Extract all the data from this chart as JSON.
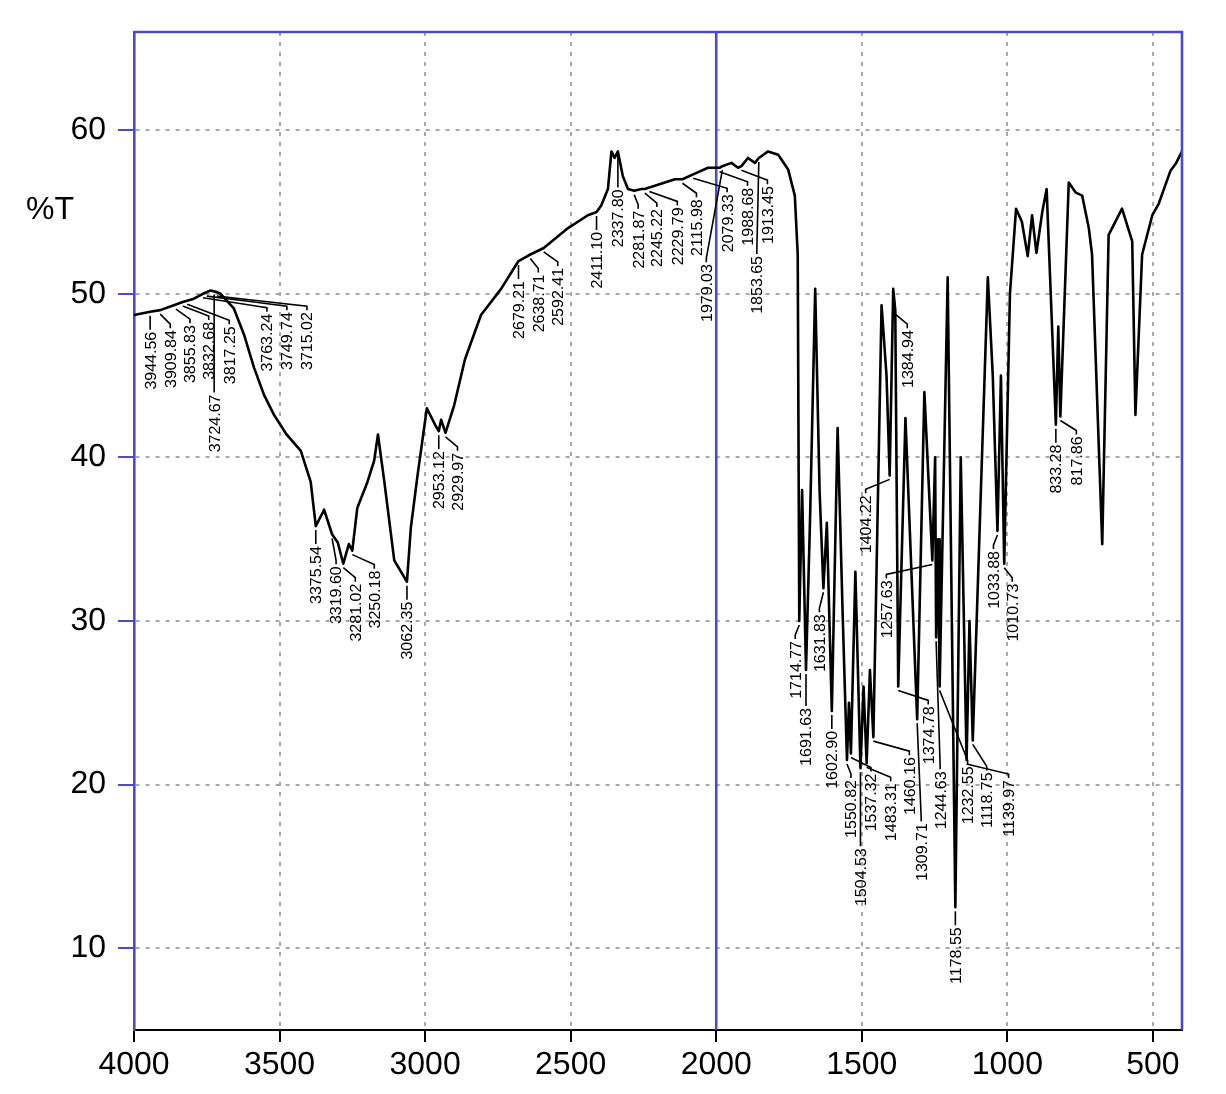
{
  "chart_data": {
    "type": "line",
    "ylabel": "%T",
    "color": "#000000",
    "marker": "none",
    "grid": true,
    "xlim": [
      4000,
      400
    ],
    "ylim": [
      5,
      66
    ],
    "xticks": [
      4000,
      3500,
      3000,
      2500,
      2000,
      1500,
      1000,
      500
    ],
    "yticks": [
      10,
      20,
      30,
      40,
      50,
      60
    ],
    "ref_lines": [
      {
        "axis": "x",
        "value": 2000,
        "color": "#4b4bc8"
      }
    ],
    "x": [
      4000,
      3944.56,
      3909.84,
      3863,
      3832.68,
      3794,
      3763.24,
      3737,
      3715.02,
      3703,
      3657,
      3622,
      3588,
      3553,
      3519,
      3476,
      3427,
      3393,
      3375.54,
      3347,
      3319.6,
      3300,
      3281.02,
      3262,
      3250.18,
      3233,
      3198,
      3175,
      3162,
      3140,
      3106,
      3062.35,
      3049,
      3026,
      2994,
      2966,
      2953.12,
      2945,
      2929.97,
      2900,
      2863,
      2808,
      2739,
      2679.21,
      2638.71,
      2592.41,
      2579,
      2510,
      2441,
      2411.1,
      2395,
      2372,
      2360,
      2349,
      2337.8,
      2321,
      2303,
      2281.87,
      2257,
      2245.22,
      2229.79,
      2211,
      2142,
      2115.98,
      2079.33,
      2028,
      1988.68,
      1979.03,
      1948,
      1925,
      1913.45,
      1891,
      1867,
      1853.65,
      1822,
      1787,
      1753,
      1730,
      1720,
      1714.77,
      1705,
      1691.63,
      1678,
      1660,
      1645,
      1631.83,
      1620,
      1602.9,
      1583,
      1565,
      1550.82,
      1544,
      1537.32,
      1522,
      1504.53,
      1494,
      1483.31,
      1472,
      1460.16,
      1432,
      1415,
      1404.22,
      1392,
      1384.94,
      1374.78,
      1350,
      1309.71,
      1285,
      1257.63,
      1248,
      1244.63,
      1238,
      1232.55,
      1205,
      1178.55,
      1160,
      1139.97,
      1130,
      1118.75,
      1067,
      1050,
      1033.88,
      1022,
      1010.73,
      991,
      970,
      950,
      930,
      915,
      900,
      880,
      865,
      833.28,
      825,
      817.86,
      789,
      766,
      743,
      720,
      709,
      674,
      652,
      606,
      571,
      560,
      537,
      502,
      480,
      460,
      440,
      420,
      400
    ],
    "values": [
      48.7,
      48.9,
      49.0,
      49.3,
      49.5,
      49.7,
      50.0,
      50.2,
      50.1,
      50.0,
      49.1,
      47.5,
      45.5,
      43.8,
      42.6,
      41.4,
      40.4,
      38.5,
      35.8,
      36.8,
      35.3,
      34.8,
      33.5,
      34.7,
      34.3,
      36.9,
      38.5,
      39.8,
      41.4,
      38.5,
      33.7,
      32.4,
      35.7,
      38.9,
      43.0,
      42.0,
      41.6,
      42.3,
      41.5,
      43.2,
      46.0,
      48.7,
      50.3,
      52.0,
      52.4,
      52.8,
      53.0,
      54.0,
      54.8,
      55.0,
      55.4,
      56.4,
      58.7,
      58.3,
      58.7,
      57.2,
      56.4,
      56.3,
      56.4,
      56.4,
      56.5,
      56.6,
      57.0,
      57.0,
      57.3,
      57.7,
      57.7,
      57.8,
      58.0,
      57.7,
      57.8,
      58.3,
      58.0,
      58.3,
      58.7,
      58.5,
      57.6,
      56.0,
      52.4,
      30,
      38,
      27,
      36,
      50.3,
      38,
      32,
      36,
      24.5,
      41.8,
      30,
      21.5,
      25,
      21.9,
      33,
      21,
      26,
      21.3,
      27,
      22.9,
      49.3,
      45,
      38.9,
      50.3,
      49,
      26,
      42.4,
      24,
      44,
      33.7,
      40,
      29,
      35,
      26,
      51,
      12.5,
      40,
      21.5,
      30,
      22.7,
      51,
      45,
      35.5,
      45,
      33.5,
      50,
      55.2,
      54.4,
      52.3,
      54.8,
      52.5,
      55,
      56.4,
      42,
      48,
      42.5,
      56.8,
      56.2,
      56,
      54,
      52.4,
      34.7,
      53.6,
      55.2,
      53.2,
      42.6,
      52.4,
      54.8,
      55.5,
      56.5,
      57.5,
      58,
      58.7
    ],
    "annotations": [
      {
        "text": "3944.56",
        "x": 3944.56,
        "y": 48.9
      },
      {
        "text": "3909.84",
        "x": 3909.84,
        "y": 49.0
      },
      {
        "text": "3855.83",
        "x": 3855.83,
        "y": 49.3
      },
      {
        "text": "3832.68",
        "x": 3832.68,
        "y": 49.5
      },
      {
        "text": "3817.25",
        "x": 3817.25,
        "y": 49.6
      },
      {
        "text": "3763.24",
        "x": 3763.24,
        "y": 50.0
      },
      {
        "text": "3749.74",
        "x": 3749.74,
        "y": 50.1
      },
      {
        "text": "3724.67",
        "x": 3724.67,
        "y": 50.2
      },
      {
        "text": "3715.02",
        "x": 3715.02,
        "y": 50.1
      },
      {
        "text": "3375.54",
        "x": 3375.54,
        "y": 35.8
      },
      {
        "text": "3319.60",
        "x": 3319.6,
        "y": 35.3
      },
      {
        "text": "3281.02",
        "x": 3281.02,
        "y": 33.5
      },
      {
        "text": "3250.18",
        "x": 3250.18,
        "y": 34.3
      },
      {
        "text": "3062.35",
        "x": 3062.35,
        "y": 32.4
      },
      {
        "text": "2953.12",
        "x": 2953.12,
        "y": 41.6
      },
      {
        "text": "2929.97",
        "x": 2929.97,
        "y": 41.5
      },
      {
        "text": "2679.21",
        "x": 2679.21,
        "y": 52.0
      },
      {
        "text": "2638.71",
        "x": 2638.71,
        "y": 52.4
      },
      {
        "text": "2592.41",
        "x": 2592.41,
        "y": 52.8
      },
      {
        "text": "2411.10",
        "x": 2411.1,
        "y": 55.0
      },
      {
        "text": "2337.80",
        "x": 2337.8,
        "y": 58.7
      },
      {
        "text": "2281.87",
        "x": 2281.87,
        "y": 56.3
      },
      {
        "text": "2245.22",
        "x": 2245.22,
        "y": 56.4
      },
      {
        "text": "2229.79",
        "x": 2229.79,
        "y": 56.5
      },
      {
        "text": "2115.98",
        "x": 2115.98,
        "y": 57.0
      },
      {
        "text": "2079.33",
        "x": 2079.33,
        "y": 57.3
      },
      {
        "text": "1988.68",
        "x": 1988.68,
        "y": 57.7
      },
      {
        "text": "1979.03",
        "x": 1979.03,
        "y": 57.8
      },
      {
        "text": "1913.45",
        "x": 1913.45,
        "y": 57.8
      },
      {
        "text": "1853.65",
        "x": 1853.65,
        "y": 58.3
      },
      {
        "text": "1714.77",
        "x": 1714.77,
        "y": 30
      },
      {
        "text": "1691.63",
        "x": 1691.63,
        "y": 27
      },
      {
        "text": "1631.83",
        "x": 1631.83,
        "y": 32
      },
      {
        "text": "1602.90",
        "x": 1602.9,
        "y": 24.5
      },
      {
        "text": "1550.82",
        "x": 1550.82,
        "y": 21.5
      },
      {
        "text": "1537.32",
        "x": 1537.32,
        "y": 21.9
      },
      {
        "text": "1504.53",
        "x": 1504.53,
        "y": 21
      },
      {
        "text": "1483.31",
        "x": 1483.31,
        "y": 21.3
      },
      {
        "text": "1460.16",
        "x": 1460.16,
        "y": 22.9
      },
      {
        "text": "1404.22",
        "x": 1404.22,
        "y": 38.9
      },
      {
        "text": "1384.94",
        "x": 1384.94,
        "y": 49
      },
      {
        "text": "1374.78",
        "x": 1374.78,
        "y": 26
      },
      {
        "text": "1309.71",
        "x": 1309.71,
        "y": 24
      },
      {
        "text": "1257.63",
        "x": 1257.63,
        "y": 33.7
      },
      {
        "text": "1244.63",
        "x": 1244.63,
        "y": 29
      },
      {
        "text": "1232.55",
        "x": 1232.55,
        "y": 26
      },
      {
        "text": "1178.55",
        "x": 1178.55,
        "y": 12.5
      },
      {
        "text": "1139.97",
        "x": 1139.97,
        "y": 21.5
      },
      {
        "text": "1118.75",
        "x": 1118.75,
        "y": 22.7
      },
      {
        "text": "1033.88",
        "x": 1033.88,
        "y": 35.5
      },
      {
        "text": "1010.73",
        "x": 1010.73,
        "y": 33.5
      },
      {
        "text": "833.28",
        "x": 833.28,
        "y": 42
      },
      {
        "text": "817.86",
        "x": 817.86,
        "y": 42.5
      }
    ]
  }
}
